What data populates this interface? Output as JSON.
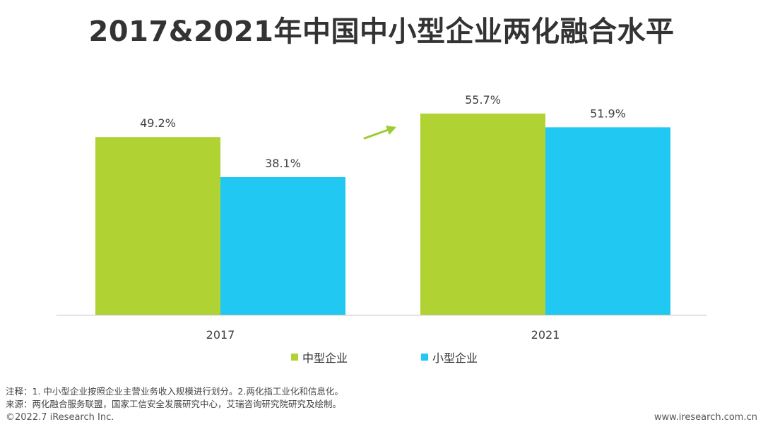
{
  "title": "2017&2021年中国中小型企业两化融合水平",
  "colors": {
    "medium": "#b1d233",
    "small": "#21c8f2",
    "arrow": "#9ccc2e",
    "axis": "#bfbfbf"
  },
  "chart_data": {
    "type": "bar",
    "categories": [
      "2017",
      "2021"
    ],
    "series": [
      {
        "name": "中型企业",
        "values": [
          49.2,
          55.7
        ],
        "labels": [
          "49.2%",
          "55.7%"
        ]
      },
      {
        "name": "小型企业",
        "values": [
          38.1,
          51.9
        ],
        "labels": [
          "38.1%",
          "51.9%"
        ]
      }
    ],
    "ylim": [
      0,
      63.5
    ],
    "grid": false,
    "legend_position": "bottom",
    "annotation": "up-arrow between 2017 and 2021"
  },
  "notes": {
    "note": "注释：1. 中小型企业按照企业主营业务收入规模进行划分。2.两化指工业化和信息化。",
    "source": "来源：两化融合服务联盟，国家工信安全发展研究中心，艾瑞咨询研究院研究及绘制。"
  },
  "footer": {
    "copyright": "©2022.7 iResearch Inc.",
    "website": "www.iresearch.com.cn"
  }
}
